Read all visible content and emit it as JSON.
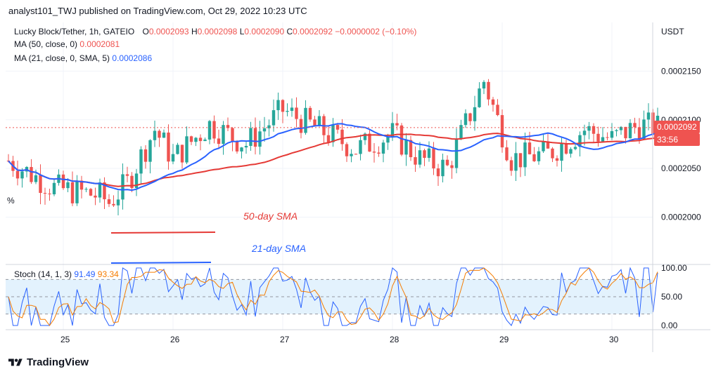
{
  "caption": "analyst101_TWJ published on TradingView.com, Oct 29, 2022 10:23 UTC",
  "footer": {
    "brand": "TradingView",
    "logo_icon": "tradingview-logo-icon"
  },
  "colors": {
    "up": "#26a69a",
    "down": "#ef5350",
    "ma50": "#e53935",
    "ma21": "#2962ff",
    "stoch_k": "#2962ff",
    "stoch_d": "#f57c00",
    "stoch_band": "#e3f2fd",
    "grid": "#f0f3fa",
    "annotation_50": "#e53935",
    "annotation_21": "#2962ff"
  },
  "legend": {
    "symbol": "Lucky Block/Tether, 1h, GATEIO",
    "o_label": "O",
    "o": "0.0002093",
    "h_label": "H",
    "h": "0.0002098",
    "l_label": "L",
    "l": "0.0002090",
    "c_label": "C",
    "c": "0.0002092",
    "change": "−0.0000002 (−0.10%)",
    "ma50_label": "MA (50, close, 0)",
    "ma50_value": "0.0002081",
    "ma21_label": "MA (21, close, 0, SMA, 5)",
    "ma21_value": "0.0002086",
    "stoch_label": "Stoch (14, 1, 3)",
    "stoch_k": "91.49",
    "stoch_d": "93.34",
    "percent_mark": "%"
  },
  "annotations": {
    "sma50": "50-day SMA",
    "sma21": "21-day SMA"
  },
  "price_badge": {
    "price": "0.0002092",
    "countdown": "33:56"
  },
  "chart_data": {
    "type": "candlestick",
    "title": "Lucky Block/Tether, 1h, GATEIO",
    "y_axis_label": "USDT",
    "y_ticks": [
      "0.0002150",
      "0.0002100",
      "0.0002050",
      "0.0002000"
    ],
    "y_tick_values": [
      0.000215,
      0.00021,
      0.000205,
      0.0002
    ],
    "ylim": [
      0.0001955,
      0.00022
    ],
    "x_ticks": [
      "25",
      "26",
      "27",
      "28",
      "29",
      "30"
    ],
    "x_tick_positions": [
      12,
      36,
      60,
      84,
      108,
      132
    ],
    "candles_count": 143,
    "last_price": 0.0002092,
    "ma50_last": 0.0002081,
    "ma21_last": 0.0002086,
    "stoch": {
      "y_ticks": [
        "100.00",
        "50.00",
        "0.00"
      ],
      "y_tick_values": [
        100,
        50,
        0
      ],
      "overbought": 80,
      "mid": 50,
      "oversold": 20,
      "k_last": 91.49,
      "d_last": 93.34
    }
  }
}
